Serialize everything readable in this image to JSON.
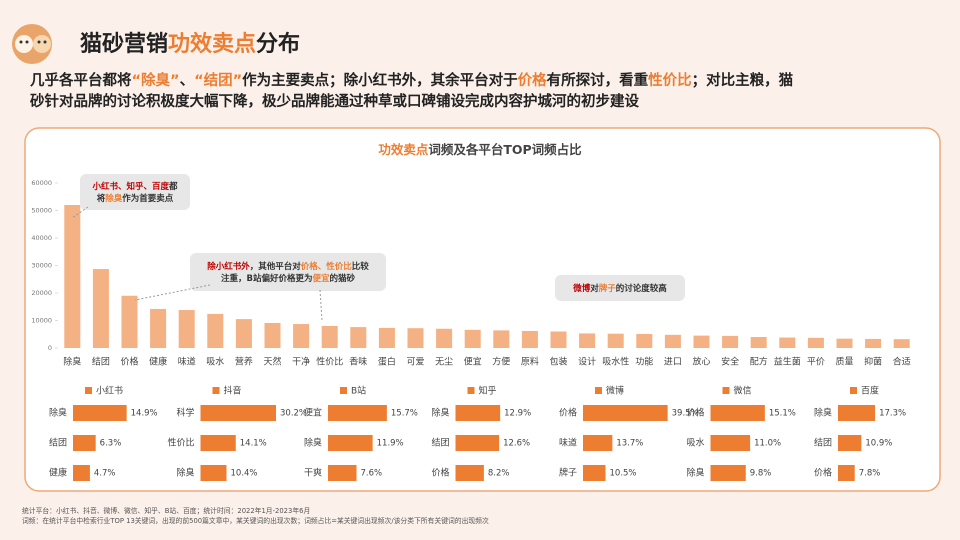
{
  "header": {
    "title": [
      {
        "text": "猫砂营销",
        "color": "#222222"
      },
      {
        "text": "功效卖点",
        "color": "#ed7d31"
      },
      {
        "text": "分布",
        "color": "#222222"
      }
    ],
    "subtitle": [
      [
        {
          "text": "几乎各平台都将",
          "color": "#222222"
        },
        {
          "text": "“除臭”",
          "color": "#ed7d31"
        },
        {
          "text": "、",
          "color": "#222222"
        },
        {
          "text": "“结团”",
          "color": "#ed7d31"
        },
        {
          "text": "作为主要卖点；除小红书外，其余平台对于",
          "color": "#222222"
        },
        {
          "text": "价格",
          "color": "#ed7d31"
        },
        {
          "text": "有所探讨，看重",
          "color": "#222222"
        },
        {
          "text": "性价比",
          "color": "#ed7d31"
        },
        {
          "text": "；对比主粮，猫",
          "color": "#222222"
        }
      ],
      [
        {
          "text": "砂针对品牌的讨论积极度大幅下降，极少品牌能通过种草或口碑铺设完成内容护城河的初步建设",
          "color": "#222222"
        }
      ]
    ]
  },
  "chart_data": {
    "type": "bar",
    "title": [
      {
        "text": "功效卖点",
        "color": "#ed7d31"
      },
      {
        "text": "词频及各平台TOP词频占比",
        "color": "#444444"
      }
    ],
    "categories": [
      "除臭",
      "结团",
      "价格",
      "健康",
      "味道",
      "吸水",
      "营养",
      "天然",
      "干净",
      "性价比",
      "香味",
      "蛋白",
      "可爱",
      "无尘",
      "便宜",
      "方便",
      "原料",
      "包装",
      "设计",
      "吸水性",
      "功能",
      "进口",
      "放心",
      "安全",
      "配方",
      "益生菌",
      "平价",
      "质量",
      "抑菌",
      "合适"
    ],
    "values": [
      52000,
      28700,
      19000,
      14200,
      13800,
      12400,
      10500,
      9100,
      8700,
      8000,
      7600,
      7300,
      7200,
      7000,
      6600,
      6400,
      6200,
      6000,
      5300,
      5200,
      5100,
      4800,
      4500,
      4400,
      4000,
      3800,
      3700,
      3400,
      3300,
      3200
    ],
    "color": "#f4b183",
    "ylim": [
      0,
      60000
    ],
    "yticks": [
      0,
      10000,
      20000,
      30000,
      40000,
      50000,
      60000
    ],
    "grid": false,
    "annotations": [
      {
        "lines": [
          [
            {
              "text": "小红书、知乎、百度",
              "color": "#c00000"
            },
            {
              "text": "都",
              "color": "#333333"
            }
          ],
          [
            {
              "text": "将",
              "color": "#333333"
            },
            {
              "text": "除臭",
              "color": "#ed7d31"
            },
            {
              "text": "作为首要卖点",
              "color": "#333333"
            }
          ]
        ]
      },
      {
        "lines": [
          [
            {
              "text": "除小红书外",
              "color": "#c00000"
            },
            {
              "text": "，其他平台对",
              "color": "#333333"
            },
            {
              "text": "价格、性价比",
              "color": "#ed7d31"
            },
            {
              "text": "比较",
              "color": "#333333"
            }
          ],
          [
            {
              "text": "注重，B站偏好价格更为",
              "color": "#333333"
            },
            {
              "text": "便宜",
              "color": "#ed7d31"
            },
            {
              "text": "的猫砂",
              "color": "#333333"
            }
          ]
        ]
      },
      {
        "lines": [
          [
            {
              "text": "微博",
              "color": "#c00000"
            },
            {
              "text": "对",
              "color": "#333333"
            },
            {
              "text": "牌子",
              "color": "#ed7d31"
            },
            {
              "text": "的讨论度较高",
              "color": "#333333"
            }
          ]
        ]
      }
    ],
    "panels": [
      {
        "name": "小红书",
        "color": "#ed7d31",
        "xlim": [
          0,
          25
        ],
        "categories": [
          "除臭",
          "结团",
          "健康"
        ],
        "values": [
          14.9,
          6.3,
          4.7
        ],
        "value_labels": [
          "14.9%",
          "6.3%",
          "4.7%"
        ]
      },
      {
        "name": "抖音",
        "color": "#ed7d31",
        "xlim": [
          0,
          36
        ],
        "categories": [
          "科学",
          "性价比",
          "除臭"
        ],
        "values": [
          30.2,
          14.1,
          10.4
        ],
        "value_labels": [
          "30.2%",
          "14.1%",
          "10.4%"
        ]
      },
      {
        "name": "B站",
        "color": "#ed7d31",
        "xlim": [
          0,
          24
        ],
        "categories": [
          "便宜",
          "除臭",
          "干爽"
        ],
        "values": [
          15.7,
          11.9,
          7.6
        ],
        "value_labels": [
          "15.7%",
          "11.9%",
          "7.6%"
        ]
      },
      {
        "name": "知乎",
        "color": "#ed7d31",
        "xlim": [
          0,
          26
        ],
        "categories": [
          "除臭",
          "结团",
          "价格"
        ],
        "values": [
          12.9,
          12.6,
          8.2
        ],
        "value_labels": [
          "12.9%",
          "12.6%",
          "8.2%"
        ]
      },
      {
        "name": "微博",
        "color": "#ed7d31",
        "xlim": [
          0,
          42
        ],
        "categories": [
          "价格",
          "味道",
          "牌子"
        ],
        "values": [
          39.5,
          13.7,
          10.5
        ],
        "value_labels": [
          "39.5%",
          "13.7%",
          "10.5%"
        ]
      },
      {
        "name": "微信",
        "color": "#ed7d31",
        "xlim": [
          0,
          25
        ],
        "categories": [
          "价格",
          "吸水",
          "除臭"
        ],
        "values": [
          15.1,
          11.0,
          9.8
        ],
        "value_labels": [
          "15.1%",
          "11.0%",
          "9.8%"
        ]
      },
      {
        "name": "百度",
        "color": "#ed7d31",
        "xlim": [
          0,
          42
        ],
        "categories": [
          "除臭",
          "结团",
          "价格"
        ],
        "values": [
          17.3,
          10.9,
          7.8
        ],
        "value_labels": [
          "17.3%",
          "10.9%",
          "7.8%"
        ]
      }
    ]
  },
  "footer": [
    "统计平台：小红书、抖音、微博、微信、知乎、B站、百度；统计时间：2022年1月-2023年6月",
    "词频：在统计平台中检索行业TOP 13关键词，出现的前500篇文章中，某关键词的出现次数；词频占比=某关键词出现频次/该分类下所有关键词的出现频次"
  ]
}
